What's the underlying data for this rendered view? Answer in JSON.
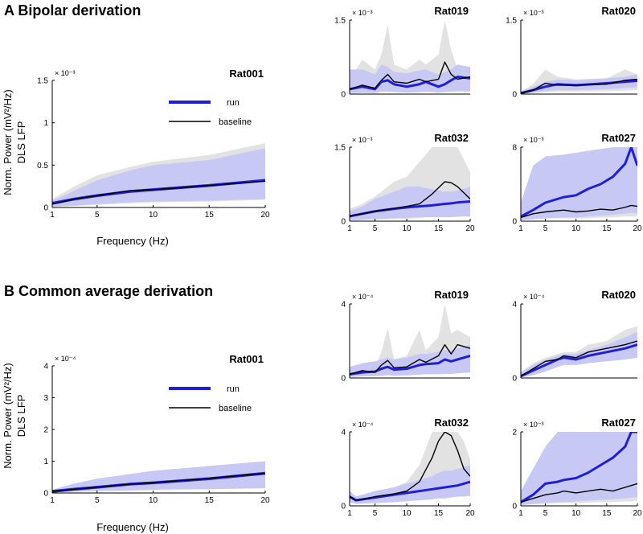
{
  "sections": {
    "a_title": "A Bipolar derivation",
    "b_title": "B Common average derivation"
  },
  "legend": {
    "run_label": "run",
    "baseline_label": "baseline"
  },
  "labels": {
    "xlabel": "Frequency (Hz)",
    "ylabel_line1": "Norm. Power (mV²/Hz)",
    "ylabel_line2": "DLS LFP"
  },
  "colors": {
    "run": "#1f1fd6",
    "run_band": "#c8c8f5",
    "baseline": "#000000",
    "baseline_band": "#e2e2e2"
  },
  "chart_data": [
    {
      "id": "a_rat001",
      "type": "line",
      "section": "A",
      "title": "Rat001",
      "xlim": [
        1,
        20
      ],
      "ylim": [
        0,
        1.5
      ],
      "xticks": [
        1,
        5,
        10,
        15,
        20
      ],
      "yticks": [
        0,
        0.5,
        1,
        1.5
      ],
      "exponent": "× 10⁻³",
      "legend": true,
      "x": [
        1,
        3,
        5,
        8,
        10,
        15,
        20
      ],
      "series": [
        {
          "name": "run",
          "values": [
            0.05,
            0.1,
            0.14,
            0.19,
            0.21,
            0.26,
            0.32
          ]
        },
        {
          "name": "baseline",
          "values": [
            0.04,
            0.1,
            0.14,
            0.2,
            0.21,
            0.26,
            0.31
          ]
        }
      ],
      "run_band": {
        "upper": [
          0.08,
          0.2,
          0.32,
          0.44,
          0.5,
          0.56,
          0.7
        ],
        "lower": [
          0.01,
          0.02,
          0.04,
          0.06,
          0.07,
          0.08,
          0.1
        ]
      },
      "baseline_band": {
        "upper": [
          0.1,
          0.25,
          0.38,
          0.48,
          0.54,
          0.62,
          0.76
        ],
        "lower": [
          0.01,
          0.02,
          0.03,
          0.05,
          0.06,
          0.07,
          0.09
        ]
      }
    },
    {
      "id": "a_rat019",
      "type": "line",
      "section": "A",
      "title": "Rat019",
      "xlim": [
        1,
        20
      ],
      "ylim": [
        0,
        1.5
      ],
      "xticks": [],
      "yticks": [
        0,
        1.5
      ],
      "exponent": "× 10⁻³",
      "legend": false,
      "x": [
        1,
        3,
        5,
        6,
        7,
        8,
        10,
        12,
        13,
        15,
        16,
        17,
        18,
        20
      ],
      "series": [
        {
          "name": "run",
          "values": [
            0.1,
            0.15,
            0.1,
            0.25,
            0.28,
            0.2,
            0.15,
            0.2,
            0.25,
            0.15,
            0.2,
            0.28,
            0.35,
            0.32
          ]
        },
        {
          "name": "baseline",
          "values": [
            0.1,
            0.18,
            0.12,
            0.28,
            0.4,
            0.25,
            0.22,
            0.3,
            0.25,
            0.3,
            0.65,
            0.4,
            0.3,
            0.35
          ]
        }
      ],
      "run_band": {
        "upper": [
          0.5,
          0.5,
          0.4,
          0.6,
          0.55,
          0.45,
          0.42,
          0.48,
          0.5,
          0.4,
          0.45,
          0.5,
          0.6,
          0.55
        ],
        "lower": [
          0.02,
          0.03,
          0.02,
          0.05,
          0.05,
          0.04,
          0.03,
          0.04,
          0.05,
          0.03,
          0.04,
          0.05,
          0.07,
          0.06
        ]
      },
      "baseline_band": {
        "upper": [
          0.3,
          0.7,
          0.5,
          0.8,
          1.4,
          0.6,
          0.5,
          0.7,
          0.6,
          0.8,
          1.5,
          0.9,
          0.5,
          0.5
        ],
        "lower": [
          0.01,
          0.02,
          0.02,
          0.04,
          0.05,
          0.04,
          0.03,
          0.04,
          0.04,
          0.05,
          0.06,
          0.05,
          0.04,
          0.04
        ]
      }
    },
    {
      "id": "a_rat020",
      "type": "line",
      "section": "A",
      "title": "Rat020",
      "xlim": [
        1,
        20
      ],
      "ylim": [
        0,
        1.5
      ],
      "xticks": [],
      "yticks": [
        0,
        1.5
      ],
      "exponent": "× 10⁻³",
      "legend": false,
      "x": [
        1,
        3,
        5,
        7,
        10,
        15,
        18,
        20
      ],
      "series": [
        {
          "name": "run",
          "values": [
            0.02,
            0.08,
            0.15,
            0.2,
            0.18,
            0.22,
            0.25,
            0.27
          ]
        },
        {
          "name": "baseline",
          "values": [
            0.02,
            0.08,
            0.22,
            0.18,
            0.18,
            0.2,
            0.28,
            0.3
          ]
        }
      ],
      "run_band": {
        "upper": [
          0.05,
          0.15,
          0.25,
          0.3,
          0.28,
          0.32,
          0.35,
          0.4
        ],
        "lower": [
          0.01,
          0.03,
          0.06,
          0.08,
          0.08,
          0.1,
          0.12,
          0.14
        ]
      },
      "baseline_band": {
        "upper": [
          0.05,
          0.2,
          0.5,
          0.35,
          0.3,
          0.32,
          0.5,
          0.4
        ],
        "lower": [
          0.01,
          0.02,
          0.04,
          0.05,
          0.05,
          0.06,
          0.07,
          0.08
        ]
      }
    },
    {
      "id": "a_rat032",
      "type": "line",
      "section": "A",
      "title": "Rat032",
      "xlim": [
        1,
        20
      ],
      "ylim": [
        0,
        1.5
      ],
      "xticks": [
        1,
        5,
        10,
        15,
        20
      ],
      "yticks": [
        0,
        1.5
      ],
      "exponent": "× 10⁻³",
      "legend": false,
      "x": [
        1,
        3,
        5,
        8,
        10,
        12,
        14,
        16,
        17,
        18,
        20
      ],
      "series": [
        {
          "name": "run",
          "values": [
            0.1,
            0.15,
            0.2,
            0.25,
            0.28,
            0.3,
            0.32,
            0.35,
            0.36,
            0.38,
            0.4
          ]
        },
        {
          "name": "baseline",
          "values": [
            0.1,
            0.15,
            0.2,
            0.26,
            0.3,
            0.35,
            0.55,
            0.8,
            0.78,
            0.7,
            0.45
          ]
        }
      ],
      "run_band": {
        "upper": [
          0.2,
          0.3,
          0.45,
          0.6,
          0.7,
          0.7,
          0.65,
          0.6,
          0.6,
          0.62,
          0.7
        ],
        "lower": [
          0.02,
          0.03,
          0.04,
          0.06,
          0.07,
          0.08,
          0.08,
          0.08,
          0.08,
          0.09,
          0.1
        ]
      },
      "baseline_band": {
        "upper": [
          0.25,
          0.35,
          0.5,
          0.8,
          0.9,
          1.2,
          1.5,
          1.5,
          1.5,
          1.5,
          1.0
        ],
        "lower": [
          0.01,
          0.02,
          0.03,
          0.04,
          0.05,
          0.06,
          0.1,
          0.15,
          0.15,
          0.12,
          0.08
        ]
      }
    },
    {
      "id": "a_rat027",
      "type": "line",
      "section": "A",
      "title": "Rat027",
      "xlim": [
        1,
        20
      ],
      "ylim": [
        0,
        8
      ],
      "xticks": [
        1,
        5,
        10,
        15,
        20
      ],
      "yticks": [
        0,
        8
      ],
      "exponent": "× 10⁻³",
      "legend": false,
      "x": [
        1,
        3,
        5,
        8,
        10,
        12,
        14,
        16,
        18,
        19,
        20
      ],
      "series": [
        {
          "name": "run",
          "values": [
            0.5,
            1.2,
            2.0,
            2.6,
            2.8,
            3.5,
            4.0,
            4.8,
            6.2,
            8.0,
            6.0
          ]
        },
        {
          "name": "baseline",
          "values": [
            0.4,
            0.8,
            1.0,
            1.2,
            1.0,
            1.1,
            1.3,
            1.2,
            1.5,
            1.7,
            1.6
          ]
        }
      ],
      "run_band": {
        "upper": [
          2.0,
          6.0,
          7.0,
          7.2,
          7.4,
          7.6,
          7.8,
          8.0,
          8.0,
          8.0,
          8.0
        ],
        "lower": [
          0.1,
          0.2,
          0.3,
          0.4,
          0.4,
          0.5,
          0.6,
          0.7,
          0.8,
          0.9,
          0.8
        ]
      },
      "baseline_band": {
        "upper": [
          0.8,
          1.5,
          2.0,
          2.5,
          2.3,
          2.4,
          2.6,
          2.5,
          3.0,
          3.2,
          3.0
        ],
        "lower": [
          0.1,
          0.2,
          0.3,
          0.3,
          0.3,
          0.3,
          0.4,
          0.4,
          0.5,
          0.5,
          0.5
        ]
      }
    },
    {
      "id": "b_rat001",
      "type": "line",
      "section": "B",
      "title": "Rat001",
      "xlim": [
        1,
        20
      ],
      "ylim": [
        0,
        4
      ],
      "xticks": [
        1,
        5,
        10,
        15,
        20
      ],
      "yticks": [
        0,
        1,
        2,
        3,
        4
      ],
      "exponent": "× 10⁻⁴",
      "legend": true,
      "x": [
        1,
        3,
        5,
        8,
        10,
        15,
        20
      ],
      "series": [
        {
          "name": "run",
          "values": [
            0.05,
            0.12,
            0.18,
            0.28,
            0.32,
            0.45,
            0.62
          ]
        },
        {
          "name": "baseline",
          "values": [
            0.05,
            0.12,
            0.18,
            0.28,
            0.32,
            0.46,
            0.62
          ]
        }
      ],
      "run_band": {
        "upper": [
          0.1,
          0.3,
          0.45,
          0.6,
          0.7,
          0.85,
          1.0
        ],
        "lower": [
          0.02,
          0.04,
          0.06,
          0.08,
          0.1,
          0.12,
          0.15
        ]
      },
      "baseline_band": {
        "upper": [
          0.08,
          0.2,
          0.3,
          0.42,
          0.48,
          0.6,
          0.75
        ],
        "lower": [
          0.02,
          0.05,
          0.08,
          0.12,
          0.14,
          0.18,
          0.22
        ]
      }
    },
    {
      "id": "b_rat019",
      "type": "line",
      "section": "B",
      "title": "Rat019",
      "xlim": [
        1,
        20
      ],
      "ylim": [
        0,
        4
      ],
      "xticks": [],
      "yticks": [
        0,
        4
      ],
      "exponent": "× 10⁻⁴",
      "legend": false,
      "x": [
        1,
        3,
        5,
        6,
        7,
        8,
        10,
        12,
        13,
        15,
        16,
        17,
        18,
        20
      ],
      "series": [
        {
          "name": "run",
          "values": [
            0.2,
            0.3,
            0.35,
            0.5,
            0.6,
            0.45,
            0.5,
            0.7,
            0.75,
            0.8,
            1.0,
            0.9,
            1.0,
            1.2
          ]
        },
        {
          "name": "baseline",
          "values": [
            0.2,
            0.4,
            0.3,
            0.7,
            0.95,
            0.55,
            0.6,
            1.0,
            0.85,
            1.2,
            1.8,
            1.3,
            1.8,
            1.6
          ]
        }
      ],
      "run_band": {
        "upper": [
          0.6,
          0.8,
          0.9,
          1.0,
          1.1,
          1.0,
          1.1,
          1.3,
          1.3,
          1.4,
          1.5,
          1.5,
          1.6,
          1.8
        ],
        "lower": [
          0.05,
          0.08,
          0.1,
          0.12,
          0.15,
          0.12,
          0.14,
          0.18,
          0.2,
          0.2,
          0.22,
          0.22,
          0.25,
          0.3
        ]
      },
      "baseline_band": {
        "upper": [
          0.4,
          0.8,
          0.6,
          1.4,
          2.7,
          1.0,
          1.2,
          2.6,
          1.5,
          2.2,
          4.0,
          2.4,
          2.6,
          2.2
        ],
        "lower": [
          0.05,
          0.1,
          0.1,
          0.15,
          0.2,
          0.15,
          0.2,
          0.25,
          0.2,
          0.3,
          0.35,
          0.3,
          0.35,
          0.4
        ]
      }
    },
    {
      "id": "b_rat020",
      "type": "line",
      "section": "B",
      "title": "Rat020",
      "xlim": [
        1,
        20
      ],
      "ylim": [
        0,
        4
      ],
      "xticks": [],
      "yticks": [
        0,
        4
      ],
      "exponent": "× 10⁻⁴",
      "legend": false,
      "x": [
        1,
        3,
        5,
        7,
        8,
        10,
        12,
        15,
        18,
        20
      ],
      "series": [
        {
          "name": "run",
          "values": [
            0.1,
            0.4,
            0.7,
            1.0,
            1.1,
            1.0,
            1.2,
            1.4,
            1.6,
            1.8
          ]
        },
        {
          "name": "baseline",
          "values": [
            0.1,
            0.5,
            0.9,
            1.0,
            1.2,
            1.1,
            1.4,
            1.6,
            1.8,
            2.0
          ]
        }
      ],
      "run_band": {
        "upper": [
          0.3,
          0.7,
          1.0,
          1.2,
          1.3,
          1.3,
          1.5,
          1.8,
          2.2,
          2.5
        ],
        "lower": [
          0.02,
          0.15,
          0.35,
          0.6,
          0.7,
          0.7,
          0.8,
          0.9,
          1.0,
          1.1
        ]
      },
      "baseline_band": {
        "upper": [
          0.3,
          0.8,
          1.1,
          1.3,
          1.4,
          1.4,
          1.8,
          2.0,
          2.6,
          2.8
        ],
        "lower": [
          0.02,
          0.2,
          0.5,
          0.7,
          0.8,
          0.8,
          0.9,
          1.0,
          1.1,
          1.2
        ]
      }
    },
    {
      "id": "b_rat032",
      "type": "line",
      "section": "B",
      "title": "Rat032",
      "xlim": [
        1,
        20
      ],
      "ylim": [
        0,
        4
      ],
      "xticks": [
        1,
        5,
        10,
        15,
        20
      ],
      "yticks": [
        0,
        4
      ],
      "exponent": "× 10⁻⁴",
      "legend": false,
      "x": [
        1,
        2,
        3,
        5,
        8,
        10,
        12,
        14,
        15,
        16,
        17,
        18,
        19,
        20
      ],
      "series": [
        {
          "name": "run",
          "values": [
            0.5,
            0.3,
            0.35,
            0.45,
            0.6,
            0.7,
            0.8,
            0.9,
            0.95,
            1.0,
            1.05,
            1.1,
            1.2,
            1.3
          ]
        },
        {
          "name": "baseline",
          "values": [
            0.5,
            0.3,
            0.35,
            0.5,
            0.65,
            0.8,
            1.3,
            2.6,
            3.5,
            4.0,
            3.8,
            3.0,
            2.0,
            1.6
          ]
        }
      ],
      "run_band": {
        "upper": [
          0.8,
          0.5,
          0.6,
          0.8,
          1.0,
          1.2,
          1.4,
          1.6,
          1.8,
          1.9,
          1.9,
          2.0,
          2.1,
          2.2
        ],
        "lower": [
          0.2,
          0.1,
          0.12,
          0.15,
          0.2,
          0.25,
          0.3,
          0.35,
          0.4,
          0.4,
          0.45,
          0.5,
          0.5,
          0.55
        ]
      },
      "baseline_band": {
        "upper": [
          0.8,
          0.5,
          0.6,
          0.8,
          1.0,
          1.3,
          2.2,
          4.0,
          4.0,
          4.0,
          4.0,
          4.0,
          3.5,
          2.5
        ],
        "lower": [
          0.2,
          0.1,
          0.12,
          0.15,
          0.2,
          0.25,
          0.35,
          0.6,
          0.9,
          1.2,
          1.1,
          0.8,
          0.6,
          0.5
        ]
      }
    },
    {
      "id": "b_rat027",
      "type": "line",
      "section": "B",
      "title": "Rat027",
      "xlim": [
        1,
        20
      ],
      "ylim": [
        0,
        2
      ],
      "xticks": [
        1,
        5,
        10,
        15,
        20
      ],
      "yticks": [
        0,
        2
      ],
      "exponent": "× 10⁻³",
      "legend": false,
      "x": [
        1,
        3,
        5,
        7,
        8,
        10,
        12,
        14,
        16,
        18,
        19,
        20
      ],
      "series": [
        {
          "name": "run",
          "values": [
            0.1,
            0.3,
            0.6,
            0.65,
            0.7,
            0.75,
            0.9,
            1.1,
            1.3,
            1.6,
            2.0,
            2.0
          ]
        },
        {
          "name": "baseline",
          "values": [
            0.1,
            0.2,
            0.3,
            0.35,
            0.4,
            0.35,
            0.4,
            0.45,
            0.4,
            0.5,
            0.55,
            0.6
          ]
        }
      ],
      "run_band": {
        "upper": [
          0.4,
          1.0,
          1.6,
          2.0,
          2.0,
          2.0,
          2.0,
          2.0,
          2.0,
          2.0,
          2.0,
          2.0
        ],
        "lower": [
          0.02,
          0.05,
          0.08,
          0.1,
          0.1,
          0.12,
          0.14,
          0.16,
          0.18,
          0.2,
          0.22,
          0.24
        ]
      },
      "baseline_band": {
        "upper": [
          0.2,
          0.4,
          0.6,
          0.7,
          0.8,
          0.7,
          0.8,
          0.9,
          0.85,
          1.0,
          1.1,
          1.2
        ],
        "lower": [
          0.02,
          0.04,
          0.06,
          0.07,
          0.08,
          0.08,
          0.09,
          0.1,
          0.1,
          0.12,
          0.12,
          0.14
        ]
      }
    }
  ]
}
